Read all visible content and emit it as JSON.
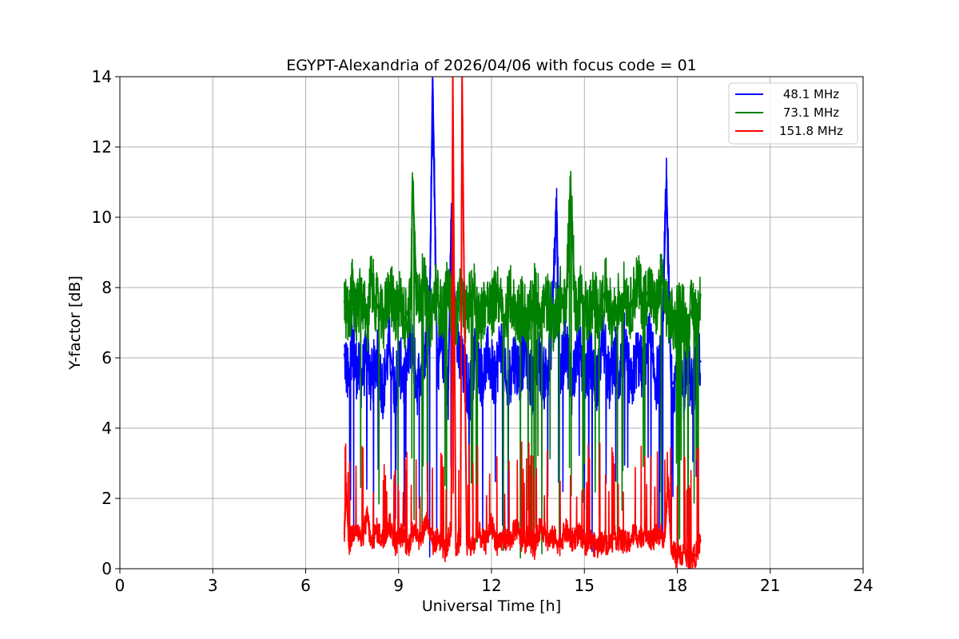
{
  "chart_data": {
    "type": "line",
    "title": "EGYPT-Alexandria of 2026/04/06 with focus code = 01",
    "xlabel": "Universal Time [h]",
    "ylabel": "Y-factor [dB]",
    "xlim": [
      0,
      24
    ],
    "ylim": [
      0,
      14
    ],
    "xticks": [
      0,
      3,
      6,
      9,
      12,
      15,
      18,
      21,
      24
    ],
    "yticks": [
      0,
      2,
      4,
      6,
      8,
      10,
      12,
      14
    ],
    "grid": true,
    "legend_position": "top-right",
    "series": [
      {
        "name": "48.1 MHz",
        "color": "#0000ff",
        "x": [
          7.25,
          7.4,
          7.5,
          7.6,
          7.8,
          8.0,
          8.1,
          8.3,
          8.5,
          8.7,
          8.9,
          9.0,
          9.2,
          9.4,
          9.6,
          9.8,
          10.0,
          10.1,
          10.25,
          10.4,
          10.6,
          10.7,
          10.9,
          11.1,
          11.3,
          11.5,
          11.7,
          11.9,
          12.1,
          12.3,
          12.5,
          12.7,
          12.9,
          13.1,
          13.3,
          13.5,
          13.7,
          13.9,
          14.1,
          14.2,
          14.4,
          14.6,
          14.8,
          15.0,
          15.2,
          15.4,
          15.6,
          15.8,
          16.0,
          16.1,
          16.3,
          16.5,
          16.7,
          16.9,
          17.1,
          17.3,
          17.5,
          17.65,
          17.8,
          18.0,
          18.2,
          18.3,
          18.5,
          18.6,
          18.75
        ],
        "values": [
          6.1,
          5.2,
          6.6,
          5.8,
          5.4,
          6.2,
          5.3,
          6.0,
          5.1,
          6.4,
          5.0,
          5.9,
          5.3,
          6.6,
          5.2,
          6.1,
          7.0,
          13.9,
          5.8,
          6.4,
          5.1,
          9.8,
          6.2,
          5.6,
          5.0,
          6.3,
          5.4,
          6.1,
          5.3,
          6.5,
          5.0,
          6.0,
          5.6,
          6.3,
          5.2,
          6.1,
          5.4,
          6.0,
          10.3,
          5.3,
          6.5,
          5.2,
          6.3,
          5.5,
          6.0,
          5.2,
          6.6,
          5.3,
          6.2,
          5.4,
          6.5,
          5.1,
          6.1,
          5.6,
          6.6,
          5.3,
          6.0,
          11.0,
          5.2,
          5.5,
          4.9,
          6.1,
          5.0,
          5.8,
          5.9
        ]
      },
      {
        "name": "73.1 MHz",
        "color": "#008000",
        "x": [
          7.25,
          7.4,
          7.5,
          7.6,
          7.8,
          8.0,
          8.1,
          8.3,
          8.5,
          8.7,
          8.9,
          9.0,
          9.2,
          9.4,
          9.45,
          9.6,
          9.8,
          10.0,
          10.2,
          10.4,
          10.6,
          10.8,
          11.0,
          11.2,
          11.4,
          11.6,
          11.8,
          12.0,
          12.2,
          12.4,
          12.6,
          12.8,
          13.0,
          13.2,
          13.4,
          13.6,
          13.8,
          14.0,
          14.2,
          14.4,
          14.55,
          14.7,
          14.9,
          15.1,
          15.3,
          15.5,
          15.7,
          15.9,
          16.1,
          16.3,
          16.5,
          16.7,
          16.9,
          17.1,
          17.3,
          17.5,
          17.7,
          17.9,
          18.1,
          18.3,
          18.5,
          18.65,
          18.75
        ],
        "values": [
          7.6,
          7.0,
          8.0,
          7.2,
          7.8,
          6.9,
          8.2,
          7.5,
          7.0,
          8.0,
          7.3,
          7.8,
          7.1,
          7.6,
          11.1,
          7.4,
          8.2,
          7.0,
          7.9,
          7.2,
          8.0,
          6.9,
          7.7,
          7.2,
          8.1,
          7.0,
          7.6,
          7.3,
          8.0,
          6.9,
          7.8,
          7.2,
          7.5,
          7.0,
          7.9,
          7.3,
          7.6,
          7.0,
          7.8,
          7.3,
          11.0,
          7.4,
          7.9,
          7.2,
          7.7,
          7.3,
          8.0,
          7.1,
          7.6,
          7.9,
          7.4,
          8.2,
          7.6,
          8.0,
          7.3,
          8.3,
          7.2,
          7.0,
          7.6,
          6.8,
          7.5,
          7.1,
          7.8
        ]
      },
      {
        "name": "151.8 MHz",
        "color": "#ff0000",
        "x": [
          7.25,
          7.3,
          7.4,
          7.6,
          7.8,
          8.0,
          8.1,
          8.3,
          8.5,
          8.7,
          8.9,
          9.1,
          9.3,
          9.5,
          9.7,
          9.9,
          10.1,
          10.3,
          10.5,
          10.7,
          10.75,
          10.85,
          11.0,
          11.05,
          11.2,
          11.4,
          11.6,
          11.8,
          12.0,
          12.2,
          12.4,
          12.6,
          12.8,
          13.0,
          13.2,
          13.4,
          13.6,
          13.8,
          14.0,
          14.2,
          14.4,
          14.6,
          14.8,
          15.0,
          15.2,
          15.4,
          15.6,
          15.8,
          16.0,
          16.2,
          16.4,
          16.6,
          16.8,
          17.0,
          17.2,
          17.4,
          17.6,
          17.7,
          17.8,
          18.0,
          18.2,
          18.4,
          18.6,
          18.75
        ],
        "values": [
          1.0,
          2.3,
          0.7,
          1.2,
          0.8,
          1.5,
          0.7,
          1.1,
          0.8,
          1.3,
          0.7,
          1.0,
          0.6,
          1.2,
          0.8,
          1.4,
          0.7,
          0.9,
          0.5,
          1.1,
          14.0,
          0.6,
          0.9,
          14.0,
          0.7,
          0.6,
          1.0,
          0.7,
          1.3,
          0.6,
          0.9,
          0.8,
          1.2,
          0.7,
          0.9,
          0.6,
          1.3,
          0.8,
          0.9,
          0.7,
          1.1,
          0.8,
          1.0,
          0.7,
          0.8,
          0.6,
          0.8,
          0.7,
          0.9,
          0.8,
          0.7,
          1.0,
          0.9,
          1.1,
          0.8,
          1.0,
          0.9,
          2.6,
          0.6,
          0.3,
          0.5,
          0.2,
          0.4,
          0.8
        ]
      }
    ]
  }
}
